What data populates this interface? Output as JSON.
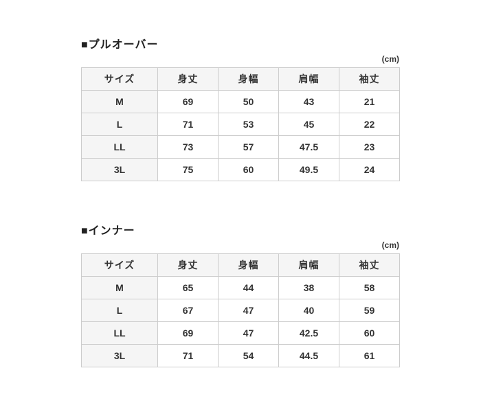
{
  "colors": {
    "page_background": "#ffffff",
    "header_cell_background": "#f5f5f5",
    "table_border": "#cccccc",
    "text": "#333333"
  },
  "tables": [
    {
      "title": "■プルオーバー",
      "unit": "(cm)",
      "headers": [
        "サイズ",
        "身丈",
        "身幅",
        "肩幅",
        "袖丈"
      ],
      "rows": [
        [
          "M",
          "69",
          "50",
          "43",
          "21"
        ],
        [
          "L",
          "71",
          "53",
          "45",
          "22"
        ],
        [
          "LL",
          "73",
          "57",
          "47.5",
          "23"
        ],
        [
          "3L",
          "75",
          "60",
          "49.5",
          "24"
        ]
      ]
    },
    {
      "title": "■インナー",
      "unit": "(cm)",
      "headers": [
        "サイズ",
        "身丈",
        "身幅",
        "肩幅",
        "袖丈"
      ],
      "rows": [
        [
          "M",
          "65",
          "44",
          "38",
          "58"
        ],
        [
          "L",
          "67",
          "47",
          "40",
          "59"
        ],
        [
          "LL",
          "69",
          "47",
          "42.5",
          "60"
        ],
        [
          "3L",
          "71",
          "54",
          "44.5",
          "61"
        ]
      ]
    }
  ]
}
